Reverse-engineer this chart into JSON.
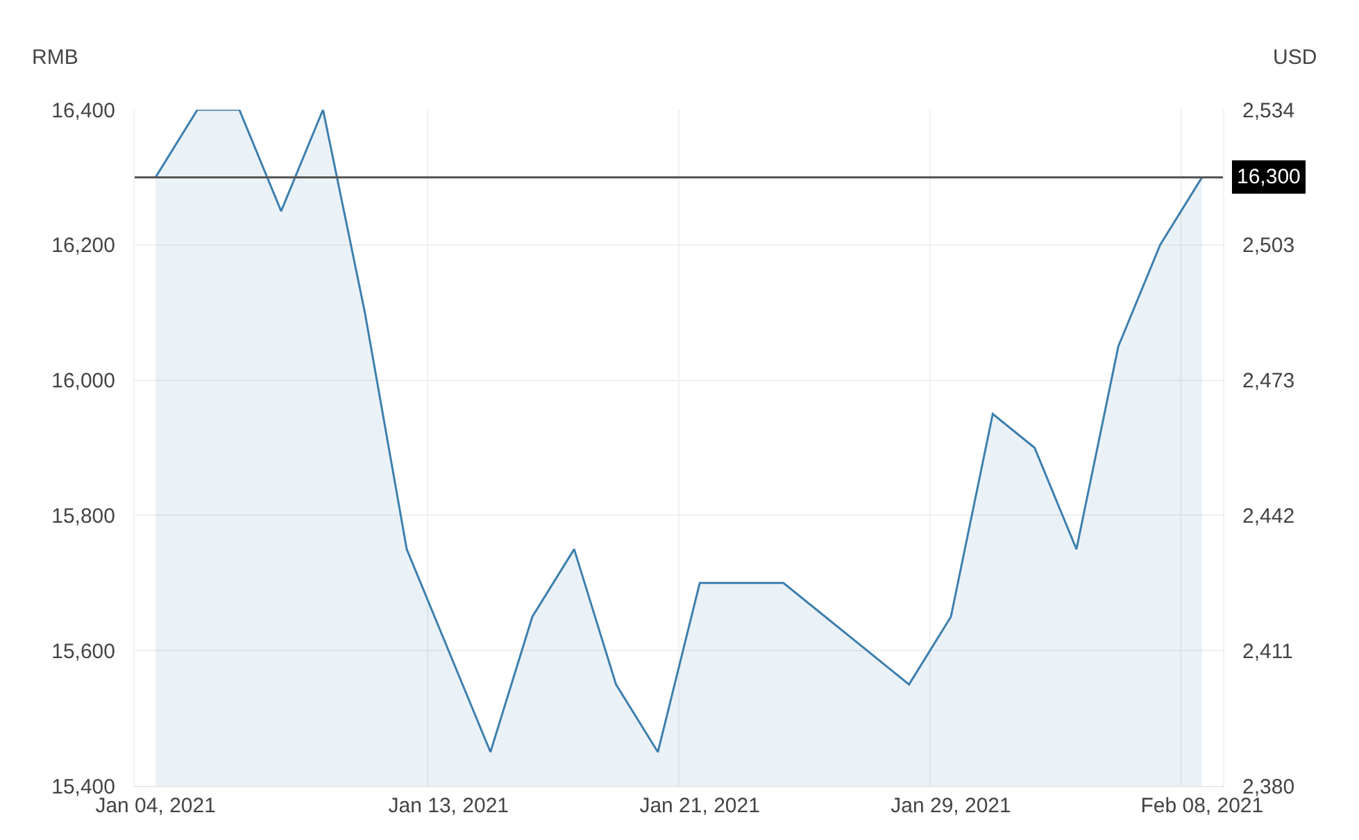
{
  "chart_data": {
    "type": "area",
    "ylabel": "RMB",
    "y2label": "USD",
    "categories": [
      "Jan 04, 2021",
      null,
      null,
      null,
      null,
      null,
      null,
      "Jan 13, 2021",
      null,
      null,
      null,
      null,
      null,
      "Jan 21, 2021",
      null,
      null,
      null,
      null,
      null,
      "Jan 29, 2021",
      null,
      null,
      null,
      null,
      null,
      "Feb 08, 2021"
    ],
    "series": [
      {
        "color": "#3d7fae",
        "values": [
          16300,
          16400,
          16400,
          16250,
          16400,
          16100,
          15750,
          15600,
          15450,
          15650,
          15750,
          15550,
          15450,
          15700,
          15700,
          15700,
          15650,
          15600,
          15550,
          15650,
          15950,
          15900,
          15750,
          16050,
          16200,
          16300
        ]
      }
    ],
    "ylim": [
      15400,
      16400
    ],
    "yticks": [
      {
        "value": 15400,
        "label": "15,400"
      },
      {
        "value": 15600,
        "label": "15,600"
      },
      {
        "value": 15800,
        "label": "15,800"
      },
      {
        "value": 16000,
        "label": "16,000"
      },
      {
        "value": 16200,
        "label": "16,200"
      },
      {
        "value": 16400,
        "label": "16,400"
      }
    ],
    "y2lim": [
      2379.9,
      2534.4
    ],
    "y2ticks": [
      {
        "value": 2379.9,
        "label": "2,380"
      },
      {
        "value": 2410.8,
        "label": "2,411"
      },
      {
        "value": 2441.7,
        "label": "2,442"
      },
      {
        "value": 2472.6,
        "label": "2,473"
      },
      {
        "value": 2503.5,
        "label": "2,503"
      },
      {
        "value": 2534.4,
        "label": "2,534"
      }
    ],
    "ref_lines": [
      {
        "axis": "y",
        "value": 16300,
        "label": "16,300",
        "color": "#555555"
      }
    ],
    "grid": true
  }
}
